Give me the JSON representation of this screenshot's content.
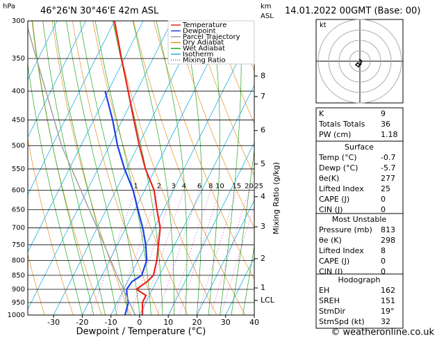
{
  "chart_data": {
    "type": "skewt",
    "title": "46°26'N 30°46'E 42m ASL",
    "date": "14.01.2022 00GMT (Base: 00)",
    "y_unit": "hPa",
    "km_unit": "km",
    "km_unit2": "ASL",
    "xlabel": "Dewpoint / Temperature (°C)",
    "mixing_ratio_label": "Mixing Ratio (g/kg)",
    "xlim": [
      -39,
      40
    ],
    "ylim": [
      1000,
      300
    ],
    "xticks": [
      -30,
      -20,
      -10,
      0,
      10,
      20,
      30,
      40
    ],
    "yticks": [
      300,
      350,
      400,
      450,
      500,
      550,
      600,
      650,
      700,
      750,
      800,
      850,
      900,
      950,
      1000
    ],
    "log_y": true,
    "km_ticks": [
      {
        "value": 376,
        "label": "8"
      },
      {
        "value": 409,
        "label": "7"
      },
      {
        "value": 470,
        "label": "6"
      },
      {
        "value": 539,
        "label": "5"
      },
      {
        "value": 616,
        "label": "4"
      },
      {
        "value": 697,
        "label": "3"
      },
      {
        "value": 794,
        "label": "2"
      },
      {
        "value": 895,
        "label": "1"
      },
      {
        "value": 942,
        "label": "LCL"
      }
    ],
    "mixing_ratios": [
      1,
      2,
      3,
      4,
      6,
      8,
      10,
      15,
      20,
      25
    ],
    "legend_entries": [
      {
        "name": "Dry Adiabat",
        "color": "#e8901c"
      },
      {
        "name": "Wet Adiabat",
        "color": "#1fa51f"
      },
      {
        "name": "Isotherm",
        "color": "#1eaee0"
      },
      {
        "name": "Mixing Ratio",
        "color": "#d21bd2"
      }
    ],
    "series": [
      {
        "name": "Temperature",
        "color": "#e8231c",
        "pressure": [
          1000,
          950,
          923,
          900,
          872,
          850,
          800,
          750,
          700,
          650,
          600,
          550,
          500,
          450,
          400,
          350,
          300
        ],
        "values": [
          1.0,
          -1.2,
          -1.2,
          -5.6,
          -3.2,
          -2.1,
          -3.5,
          -5.7,
          -8.0,
          -12.3,
          -16.7,
          -23.4,
          -29.6,
          -36.0,
          -43.0,
          -51.0,
          -60.0
        ]
      },
      {
        "name": "Dewpoint",
        "color": "#1c3ee8",
        "pressure": [
          1000,
          950,
          923,
          900,
          872,
          850,
          800,
          750,
          700,
          650,
          600,
          550,
          500,
          450,
          400
        ],
        "values": [
          -5.1,
          -6.1,
          -7.8,
          -9.0,
          -8.5,
          -6.2,
          -7.0,
          -10.1,
          -14.1,
          -18.9,
          -24.0,
          -30.7,
          -37.2,
          -43.4,
          -51.0
        ]
      },
      {
        "name": "Parcel Trajectory",
        "color": "#a0a0a0",
        "pressure": [
          1000,
          850,
          700,
          500,
          300
        ],
        "values": [
          -1.5,
          -14.8,
          -30.0,
          -56.7,
          -91.0
        ]
      }
    ]
  },
  "indices": {
    "rows": [
      [
        "K",
        9
      ],
      [
        "Totals Totals",
        36
      ],
      [
        "PW (cm)",
        1.18
      ]
    ]
  },
  "surface": {
    "title": "Surface",
    "rows": [
      [
        "Temp (°C)",
        -0.7
      ],
      [
        "Dewp (°C)",
        -5.7
      ],
      [
        "θe(K)",
        277
      ],
      [
        "Lifted Index",
        25
      ],
      [
        "CAPE (J)",
        0
      ],
      [
        "CIN (J)",
        0
      ]
    ]
  },
  "most_unstable": {
    "title": "Most Unstable",
    "rows": [
      [
        "Pressure (mb)",
        813
      ],
      [
        "θe (K)",
        298
      ],
      [
        "Lifted Index",
        8
      ],
      [
        "CAPE (J)",
        0
      ],
      [
        "CIN (J)",
        0
      ]
    ]
  },
  "hodograph": {
    "title": "Hodograph",
    "unit": "kt",
    "rows": [
      [
        "EH",
        162
      ],
      [
        "SREH",
        151
      ],
      [
        "StmDir",
        "19°"
      ],
      [
        "StmSpd (kt)",
        32
      ]
    ]
  },
  "footer": "© weatheronline.co.uk"
}
